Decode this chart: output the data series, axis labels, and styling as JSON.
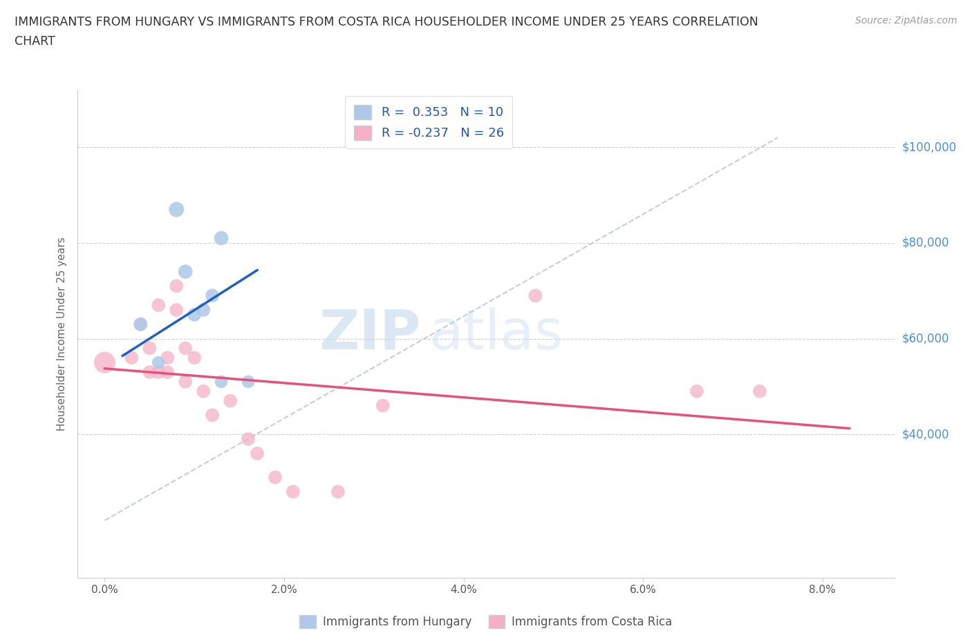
{
  "title_line1": "IMMIGRANTS FROM HUNGARY VS IMMIGRANTS FROM COSTA RICA HOUSEHOLDER INCOME UNDER 25 YEARS CORRELATION",
  "title_line2": "CHART",
  "source": "Source: ZipAtlas.com",
  "ylabel": "Householder Income Under 25 years",
  "xlabel_ticks": [
    "0.0%",
    "2.0%",
    "4.0%",
    "6.0%",
    "8.0%"
  ],
  "xlabel_tick_vals": [
    0.0,
    0.02,
    0.04,
    0.06,
    0.08
  ],
  "ytick_labels": [
    "$40,000",
    "$60,000",
    "$80,000",
    "$100,000"
  ],
  "ytick_vals": [
    40000,
    60000,
    80000,
    100000
  ],
  "ylim": [
    10000,
    112000
  ],
  "xlim": [
    -0.003,
    0.088
  ],
  "hungary_R": 0.353,
  "hungary_N": 10,
  "costarica_R": -0.237,
  "costarica_N": 26,
  "hungary_color": "#adc8e8",
  "hungary_line_color": "#2060c0",
  "costarica_color": "#f5b0c5",
  "costarica_line_color": "#e8507a",
  "dashed_line_color": "#b0c8e0",
  "watermark_zip": "ZIP",
  "watermark_atlas": "atlas",
  "legend_hungary": "Immigrants from Hungary",
  "legend_costarica": "Immigrants from Costa Rica",
  "hungary_x": [
    0.004,
    0.006,
    0.008,
    0.009,
    0.01,
    0.011,
    0.012,
    0.013,
    0.013,
    0.016
  ],
  "hungary_y": [
    63000,
    55000,
    87000,
    74000,
    65000,
    66000,
    69000,
    81000,
    51000,
    51000
  ],
  "hungary_sizes": [
    200,
    180,
    250,
    220,
    200,
    200,
    200,
    220,
    180,
    180
  ],
  "costarica_x": [
    0.0,
    0.003,
    0.004,
    0.005,
    0.005,
    0.006,
    0.006,
    0.007,
    0.007,
    0.008,
    0.008,
    0.009,
    0.009,
    0.01,
    0.011,
    0.012,
    0.014,
    0.016,
    0.017,
    0.019,
    0.021,
    0.026,
    0.031,
    0.048,
    0.066,
    0.073
  ],
  "costarica_y": [
    55000,
    56000,
    63000,
    58000,
    53000,
    67000,
    53000,
    56000,
    53000,
    71000,
    66000,
    58000,
    51000,
    56000,
    49000,
    44000,
    47000,
    39000,
    36000,
    31000,
    28000,
    28000,
    46000,
    69000,
    49000,
    49000
  ],
  "costarica_sizes": [
    500,
    200,
    200,
    200,
    200,
    200,
    200,
    200,
    200,
    200,
    200,
    200,
    200,
    200,
    200,
    200,
    200,
    200,
    200,
    200,
    200,
    200,
    200,
    200,
    200,
    200
  ],
  "background_color": "#ffffff"
}
